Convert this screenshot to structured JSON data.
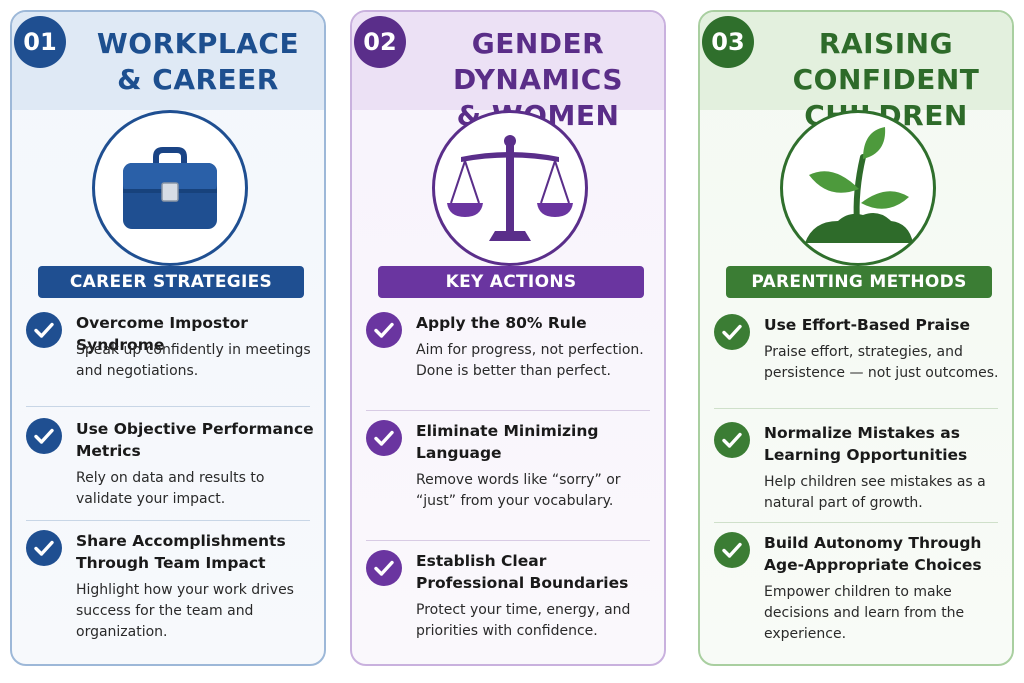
{
  "columns": [
    {
      "number": "01",
      "title_lines": [
        "WORKPLACE",
        "& CAREER"
      ],
      "icon": "briefcase-icon",
      "section_label": "CAREER STRATEGIES",
      "accent": "#1f4f91",
      "items": [
        {
          "title": "Overcome Impostor Syndrome",
          "description": "Speak up confidently in meetings and negotiations."
        },
        {
          "title": "Use Objective Performance Metrics",
          "description": "Rely on data and results to validate your impact."
        },
        {
          "title": "Share Accomplishments Through Team Impact",
          "description": "Highlight how your work drives success for the team and organization."
        }
      ]
    },
    {
      "number": "02",
      "title_lines": [
        "GENDER DYNAMICS",
        "& WOMEN"
      ],
      "icon": "balance-scale-icon",
      "section_label": "KEY ACTIONS",
      "accent": "#6a35a0",
      "items": [
        {
          "title": "Apply the 80% Rule",
          "description": "Aim for progress, not perfection. Done is better than perfect."
        },
        {
          "title": "Eliminate Minimizing Language",
          "description": "Remove words like “sorry” or “just” from your vocabulary."
        },
        {
          "title": "Establish Clear Professional Boundaries",
          "description": "Protect your time, energy, and priorities with confidence."
        }
      ]
    },
    {
      "number": "03",
      "title_lines": [
        "RAISING CONFIDENT",
        "CHILDREN"
      ],
      "icon": "sprout-icon",
      "section_label": "PARENTING METHODS",
      "accent": "#3b7d34",
      "items": [
        {
          "title": "Use Effort-Based Praise",
          "description": "Praise effort, strategies, and persistence — not just outcomes."
        },
        {
          "title": "Normalize Mistakes as Learning Opportunities",
          "description": "Help children see mistakes as a natural part of growth."
        },
        {
          "title": "Build Autonomy Through Age-Appropriate Choices",
          "description": "Empower children to make decisions and learn from the experience."
        }
      ]
    }
  ]
}
